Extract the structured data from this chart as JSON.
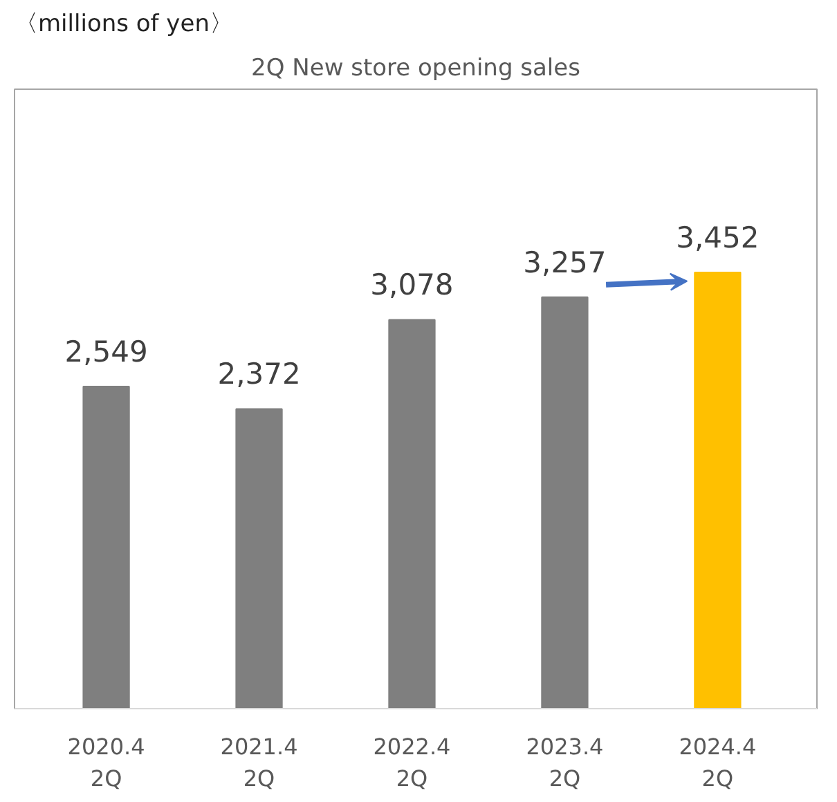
{
  "chart_data": {
    "type": "bar",
    "title": "2Q New store opening sales",
    "annotations": [
      "〈millions of yen〉"
    ],
    "categories": [
      "2020.4\n2Q",
      "2021.4\n2Q",
      "2022.4\n2Q",
      "2023.4\n2Q",
      "2024.4\n2Q"
    ],
    "values": [
      2549,
      2372,
      3078,
      3257,
      3452
    ],
    "colors": [
      "#7f7f7f",
      "#7f7f7f",
      "#7f7f7f",
      "#7f7f7f",
      "#ffc000"
    ],
    "value_labels": [
      "2,549",
      "2,372",
      "3,078",
      "3,257",
      "3,452"
    ]
  }
}
